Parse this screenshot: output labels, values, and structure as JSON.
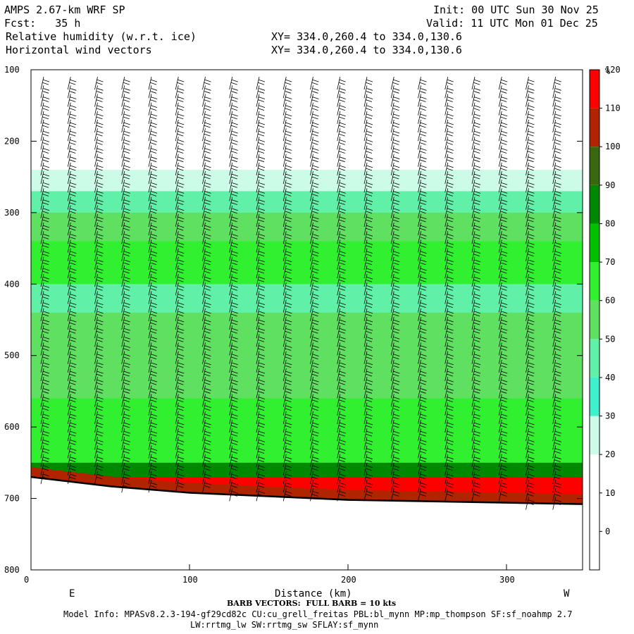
{
  "header": {
    "model": "AMPS 2.67-km WRF SP",
    "init": "Init: 00 UTC Sun 30 Nov 25",
    "fcst": "Fcst:   35 h",
    "valid": "Valid: 11 UTC Mon 01 Dec 25",
    "field1": "Relative humidity (w.r.t. ice)",
    "field2": "Horizontal wind vectors",
    "xy1": "XY= 334.0,260.4 to 334.0,130.6",
    "xy2": "XY= 334.0,260.4 to 334.0,130.6"
  },
  "footer": {
    "barb": "BARB VECTORS:  FULL BARB = 10 kts",
    "model_info": "Model Info: MPASv8.2.3-194-gf29cd82c CU:cu_grell_freitas PBL:bl_mynn MP:mp_thompson SF:sf_noahmp 2.7",
    "model_info2": "LW:rrtmg_lw SW:rrtmg_sw SFLAY:sf_mynn"
  },
  "chart_data": {
    "type": "heatmap",
    "title": "Relative humidity (w.r.t. ice)",
    "xlabel": "Distance (km)",
    "ylabel": "",
    "x_left_label": "E",
    "x_right_label": "W",
    "xlim": [
      0,
      348
    ],
    "ylim": [
      800,
      100
    ],
    "x_ticks": [
      0,
      100,
      200,
      300
    ],
    "y_ticks": [
      100,
      200,
      300,
      400,
      500,
      600,
      700,
      800
    ],
    "colorbar": {
      "unit": "%",
      "levels": [
        0,
        10,
        20,
        30,
        40,
        50,
        60,
        70,
        80,
        90,
        100,
        110,
        120
      ],
      "colors": [
        "#ffffff",
        "#ffffff",
        "#ffffff",
        "#ccfce8",
        "#40efcc",
        "#60f0a8",
        "#60e060",
        "#30f030",
        "#00c000",
        "#008800",
        "#3a6810",
        "#b02400",
        "#ff0000"
      ]
    },
    "rh_profile": [
      {
        "p": 100,
        "rh": 10
      },
      {
        "p": 200,
        "rh": 15
      },
      {
        "p": 240,
        "rh": 35
      },
      {
        "p": 270,
        "rh": 55
      },
      {
        "p": 300,
        "rh": 65
      },
      {
        "p": 340,
        "rh": 70
      },
      {
        "p": 400,
        "rh": 55
      },
      {
        "p": 440,
        "rh": 60
      },
      {
        "p": 500,
        "rh": 65
      },
      {
        "p": 560,
        "rh": 70
      },
      {
        "p": 620,
        "rh": 75
      },
      {
        "p": 650,
        "rh": 90
      },
      {
        "p": 670,
        "rh": 120
      }
    ],
    "terrain": [
      {
        "x": 0,
        "p": 670
      },
      {
        "x": 50,
        "p": 683
      },
      {
        "x": 100,
        "p": 692
      },
      {
        "x": 150,
        "p": 697
      },
      {
        "x": 200,
        "p": 702
      },
      {
        "x": 250,
        "p": 704
      },
      {
        "x": 300,
        "p": 706
      },
      {
        "x": 348,
        "p": 708
      }
    ]
  }
}
